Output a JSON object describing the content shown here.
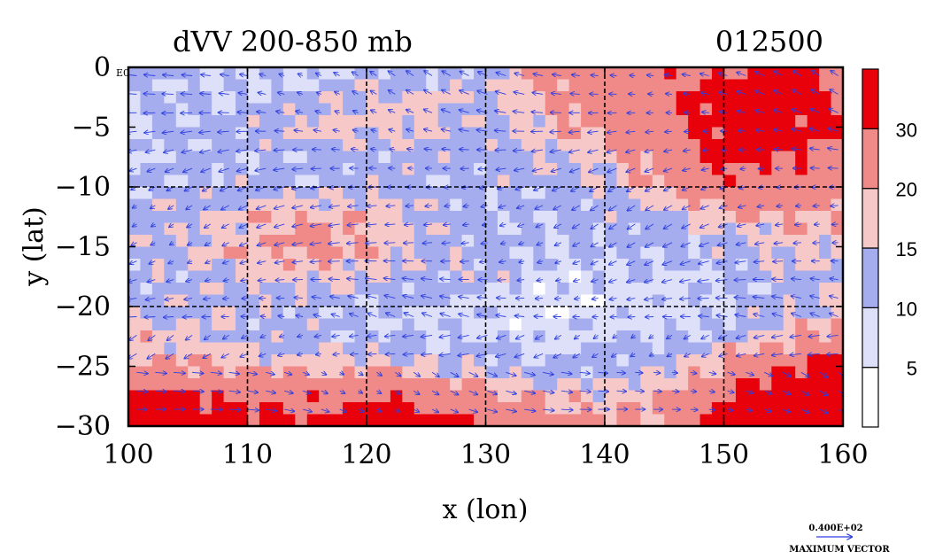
{
  "chart_data": {
    "type": "heatmap",
    "title": "dVV 200-850 mb",
    "timestamp": "012500",
    "xlabel": "x (lon)",
    "ylabel": "y (lat)",
    "xlim": [
      100,
      160
    ],
    "ylim": [
      -30,
      0
    ],
    "xticks": [
      "100",
      "110",
      "120",
      "130",
      "140",
      "150",
      "160"
    ],
    "yticks": [
      "0",
      "−5",
      "−10",
      "−15",
      "−20",
      "−25",
      "−30"
    ],
    "corner_label": "E0",
    "colorbar": {
      "levels": [
        0,
        5,
        10,
        15,
        20,
        30,
        40
      ],
      "labels": [
        "5",
        "10",
        "15",
        "20",
        "30"
      ],
      "colors": [
        "#ffffff",
        "#dde0f8",
        "#a6adee",
        "#f7c8c8",
        "#f08a88",
        "#e8000b"
      ]
    },
    "vector_key": {
      "magnitude": "0.400E+02",
      "label": "MAXIMUM VECTOR"
    },
    "field_samples": {
      "lon": [
        100,
        105,
        110,
        115,
        120,
        125,
        130,
        135,
        140,
        145,
        150,
        155,
        160
      ],
      "lat": [
        0,
        -2.5,
        -5,
        -7.5,
        -10,
        -12.5,
        -15,
        -17.5,
        -20,
        -22.5,
        -25,
        -27.5,
        -30
      ],
      "values": [
        [
          12,
          11,
          10,
          8,
          11,
          9,
          12,
          22,
          25,
          26,
          30,
          33,
          28
        ],
        [
          11,
          10,
          9,
          12,
          15,
          16,
          14,
          20,
          24,
          28,
          34,
          36,
          30
        ],
        [
          10,
          11,
          14,
          18,
          17,
          16,
          13,
          18,
          22,
          26,
          33,
          35,
          29
        ],
        [
          9,
          12,
          10,
          11,
          12,
          13,
          12,
          15,
          18,
          24,
          32,
          31,
          26
        ],
        [
          11,
          12,
          12,
          13,
          14,
          12,
          11,
          12,
          14,
          20,
          28,
          25,
          22
        ],
        [
          12,
          14,
          18,
          20,
          19,
          14,
          11,
          11,
          12,
          14,
          18,
          20,
          18
        ],
        [
          13,
          15,
          19,
          22,
          20,
          15,
          12,
          10,
          11,
          11,
          12,
          16,
          16
        ],
        [
          12,
          13,
          16,
          17,
          16,
          13,
          14,
          9,
          8,
          9,
          10,
          14,
          15
        ],
        [
          14,
          14,
          13,
          12,
          10,
          9,
          8,
          5,
          7,
          8,
          9,
          13,
          16
        ],
        [
          17,
          16,
          13,
          12,
          11,
          10,
          9,
          8,
          9,
          10,
          12,
          18,
          24
        ],
        [
          21,
          20,
          18,
          17,
          18,
          16,
          13,
          11,
          12,
          14,
          22,
          30,
          34
        ],
        [
          33,
          31,
          28,
          27,
          29,
          27,
          22,
          18,
          17,
          19,
          30,
          36,
          37
        ],
        [
          37,
          36,
          34,
          33,
          35,
          34,
          30,
          25,
          22,
          24,
          33,
          38,
          39
        ]
      ]
    }
  }
}
